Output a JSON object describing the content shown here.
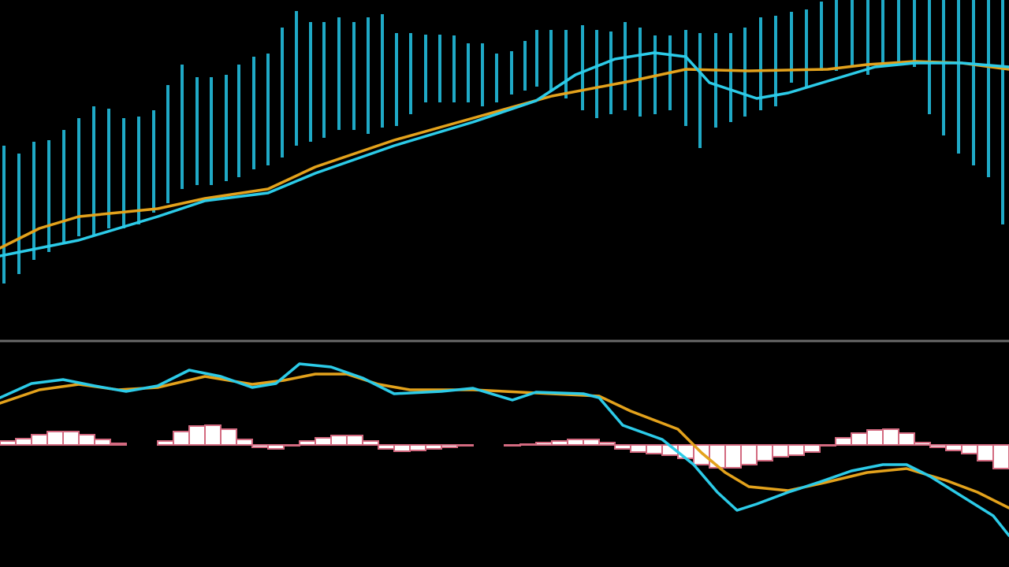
{
  "chart_data": [
    {
      "type": "combo",
      "xlim": [
        0,
        1280
      ],
      "ylim": [
        0,
        430
      ],
      "series": [
        {
          "type": "range",
          "color": "#1fa9c6",
          "x": [
            5,
            24,
            43,
            62,
            81,
            100,
            119,
            138,
            157,
            176,
            195,
            213,
            231,
            250,
            268,
            287,
            303,
            322,
            340,
            358,
            376,
            394,
            411,
            430,
            449,
            467,
            485,
            503,
            521,
            540,
            558,
            576,
            594,
            612,
            630,
            649,
            666,
            681,
            699,
            718,
            739,
            757,
            775,
            793,
            812,
            831,
            850,
            870,
            888,
            908,
            927,
            945,
            965,
            984,
            1004,
            1023,
            1042,
            1061,
            1081,
            1101,
            1120,
            1140,
            1160,
            1179,
            1197,
            1216,
            1235,
            1254,
            1272
          ],
          "high": [
            245,
            235,
            250,
            252,
            265,
            280,
            295,
            292,
            280,
            282,
            290,
            322,
            348,
            332,
            332,
            335,
            348,
            358,
            362,
            395,
            416,
            402,
            402,
            408,
            402,
            408,
            412,
            388,
            388,
            386,
            386,
            385,
            375,
            375,
            362,
            365,
            378,
            392,
            392,
            392,
            398,
            392,
            390,
            402,
            395,
            385,
            385,
            392,
            388,
            388,
            388,
            395,
            408,
            410,
            415,
            418,
            428,
            430,
            430,
            430,
            430,
            430,
            430,
            430,
            430,
            430,
            430,
            430,
            430
          ],
          "low": [
            70,
            82,
            100,
            110,
            120,
            130,
            130,
            140,
            140,
            145,
            160,
            172,
            190,
            195,
            195,
            200,
            205,
            215,
            220,
            230,
            245,
            250,
            255,
            265,
            265,
            260,
            268,
            270,
            285,
            300,
            300,
            300,
            300,
            295,
            300,
            310,
            315,
            320,
            315,
            305,
            290,
            280,
            285,
            290,
            282,
            285,
            290,
            270,
            242,
            268,
            275,
            282,
            290,
            295,
            325,
            320,
            340,
            340,
            345,
            335,
            345,
            350,
            345,
            285,
            258,
            235,
            220,
            205,
            145
          ]
        },
        {
          "type": "line",
          "color": "#e3a21c",
          "x": [
            0,
            50,
            100,
            200,
            260,
            340,
            400,
            500,
            600,
            700,
            800,
            870,
            950,
            1050,
            1100,
            1160,
            1220,
            1280
          ],
          "values": [
            115,
            140,
            155,
            165,
            178,
            190,
            218,
            252,
            280,
            308,
            327,
            342,
            340,
            342,
            348,
            352,
            350,
            342
          ]
        },
        {
          "type": "line",
          "color": "#2ccbe8",
          "x": [
            0,
            100,
            200,
            260,
            340,
            400,
            500,
            600,
            680,
            730,
            780,
            830,
            870,
            900,
            960,
            1000,
            1060,
            1110,
            1160,
            1220,
            1280
          ],
          "values": [
            105,
            125,
            155,
            175,
            185,
            210,
            245,
            275,
            302,
            335,
            355,
            363,
            358,
            325,
            305,
            312,
            330,
            345,
            350,
            350,
            345
          ]
        }
      ]
    },
    {
      "type": "combo",
      "xlim": [
        0,
        1280
      ],
      "ylim": [
        -155,
        125
      ],
      "series": [
        {
          "type": "bar",
          "color": "#d36a80",
          "x": [
            10,
            30,
            50,
            70,
            90,
            110,
            130,
            150,
            170,
            190,
            210,
            230,
            250,
            270,
            290,
            310,
            330,
            350,
            370,
            390,
            410,
            430,
            450,
            470,
            490,
            510,
            530,
            550,
            570,
            590,
            610,
            630,
            650,
            670,
            690,
            710,
            730,
            750,
            770,
            790,
            810,
            830,
            850,
            870,
            890,
            910,
            930,
            950,
            970,
            990,
            1010,
            1030,
            1050,
            1070,
            1090,
            1110,
            1130,
            1150,
            1170,
            1190,
            1210,
            1230,
            1250,
            1270
          ],
          "values": [
            5,
            8,
            13,
            17,
            17,
            13,
            7,
            2,
            0,
            0,
            5,
            17,
            24,
            25,
            20,
            7,
            -3,
            -5,
            -1,
            5,
            9,
            12,
            12,
            5,
            -5,
            -8,
            -7,
            -5,
            -3,
            -1,
            0,
            0,
            -1,
            1,
            3,
            5,
            7,
            7,
            3,
            -5,
            -9,
            -11,
            -13,
            -17,
            -25,
            -29,
            -29,
            -25,
            -20,
            -15,
            -13,
            -9,
            -1,
            9,
            15,
            19,
            20,
            15,
            3,
            -3,
            -7,
            -11,
            -20,
            -30
          ]
        },
        {
          "type": "line",
          "color": "#e3a21c",
          "x": [
            0,
            50,
            100,
            150,
            200,
            260,
            320,
            360,
            400,
            440,
            480,
            520,
            600,
            700,
            760,
            800,
            860,
            890,
            920,
            950,
            1000,
            1050,
            1100,
            1150,
            1200,
            1240,
            1280
          ],
          "values": [
            53,
            70,
            77,
            70,
            73,
            87,
            77,
            82,
            90,
            90,
            77,
            70,
            70,
            65,
            62,
            43,
            20,
            -10,
            -35,
            -53,
            -58,
            -47,
            -35,
            -30,
            -45,
            -60,
            -80
          ]
        },
        {
          "type": "line",
          "color": "#2ccbe8",
          "x": [
            0,
            40,
            80,
            120,
            160,
            200,
            240,
            280,
            320,
            350,
            380,
            420,
            460,
            500,
            560,
            600,
            650,
            680,
            740,
            760,
            790,
            840,
            880,
            910,
            935,
            960,
            1000,
            1040,
            1080,
            1120,
            1150,
            1180,
            1220,
            1260,
            1280
          ],
          "values": [
            60,
            78,
            83,
            75,
            68,
            75,
            95,
            87,
            73,
            78,
            103,
            99,
            85,
            65,
            68,
            72,
            57,
            67,
            65,
            60,
            25,
            7,
            -25,
            -60,
            -83,
            -75,
            -60,
            -47,
            -33,
            -25,
            -25,
            -40,
            -65,
            -90,
            -115
          ]
        }
      ]
    }
  ]
}
